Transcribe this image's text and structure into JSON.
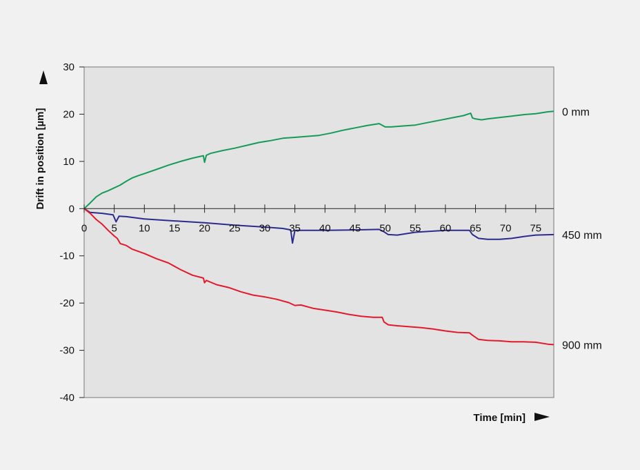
{
  "chart_data": {
    "type": "line",
    "xlabel": "Time [min]",
    "ylabel": "Drift in position [µm]",
    "xlim": [
      0,
      78
    ],
    "ylim": [
      -40,
      30
    ],
    "x_ticks": [
      0,
      5,
      10,
      15,
      20,
      25,
      30,
      35,
      40,
      45,
      50,
      55,
      60,
      65,
      70,
      75
    ],
    "y_ticks": [
      30,
      20,
      10,
      0,
      -10,
      -20,
      -30,
      -40
    ],
    "grid": false,
    "plot_background": "#e3e3e3",
    "page_background": "#f1f1f1",
    "series": [
      {
        "name": "0 mm",
        "color": "#159a57",
        "x": [
          0,
          1,
          2,
          3,
          4,
          5,
          6,
          7,
          8,
          9,
          10,
          12,
          14,
          16,
          18,
          19.8,
          20,
          20.3,
          21,
          23,
          25,
          27,
          29,
          31,
          33,
          35,
          37,
          39,
          41,
          43,
          45,
          47,
          49,
          50,
          51,
          53,
          55,
          57,
          59,
          61,
          63,
          64.2,
          64.5,
          65,
          66,
          67,
          69,
          71,
          73,
          75,
          77,
          78
        ],
        "y": [
          0,
          1.2,
          2.5,
          3.3,
          3.8,
          4.4,
          5.0,
          5.8,
          6.5,
          7.0,
          7.4,
          8.3,
          9.2,
          10.0,
          10.7,
          11.2,
          9.8,
          11.3,
          11.7,
          12.3,
          12.8,
          13.4,
          14.0,
          14.4,
          14.9,
          15.1,
          15.3,
          15.5,
          16.0,
          16.6,
          17.1,
          17.6,
          18.0,
          17.3,
          17.3,
          17.5,
          17.7,
          18.2,
          18.7,
          19.2,
          19.7,
          20.2,
          19.2,
          19.0,
          18.8,
          19.0,
          19.3,
          19.6,
          19.9,
          20.1,
          20.5,
          20.6
        ]
      },
      {
        "name": "450 mm",
        "color": "#2a2b8f",
        "x": [
          0,
          1,
          3,
          4.8,
          5.3,
          5.8,
          7,
          10,
          15,
          20,
          25,
          30,
          33,
          34.3,
          34.6,
          35,
          37,
          40,
          45,
          49,
          49.8,
          50.5,
          52,
          55,
          60,
          64,
          64.5,
          65.5,
          67,
          69,
          71,
          73,
          75,
          78
        ],
        "y": [
          0,
          -0.8,
          -1.0,
          -1.3,
          -2.8,
          -1.6,
          -1.7,
          -2.2,
          -2.6,
          -3.0,
          -3.5,
          -3.9,
          -4.2,
          -4.5,
          -7.3,
          -4.6,
          -4.6,
          -4.6,
          -4.5,
          -4.4,
          -4.9,
          -5.5,
          -5.6,
          -5.0,
          -4.6,
          -4.6,
          -5.5,
          -6.3,
          -6.5,
          -6.5,
          -6.3,
          -5.9,
          -5.6,
          -5.5
        ]
      },
      {
        "name": "900 mm",
        "color": "#e3192b",
        "x": [
          0,
          1,
          2,
          3,
          4,
          5,
          5.5,
          6,
          7,
          8,
          10,
          12,
          14,
          16,
          18,
          19.8,
          20,
          20.3,
          22,
          24,
          26,
          28,
          30,
          32,
          34,
          35,
          36,
          38,
          40,
          42,
          44,
          46,
          48,
          49.5,
          49.8,
          50.5,
          52,
          54,
          56,
          58,
          60,
          62,
          64,
          64.5,
          65.5,
          67,
          69,
          71,
          73,
          75,
          77,
          78
        ],
        "y": [
          0,
          -1.0,
          -2.3,
          -3.3,
          -4.6,
          -5.8,
          -6.3,
          -7.4,
          -7.8,
          -8.6,
          -9.5,
          -10.6,
          -11.5,
          -12.9,
          -14.1,
          -14.7,
          -15.7,
          -15.2,
          -16.1,
          -16.7,
          -17.6,
          -18.3,
          -18.7,
          -19.2,
          -19.9,
          -20.5,
          -20.4,
          -21.1,
          -21.5,
          -21.9,
          -22.4,
          -22.8,
          -23.0,
          -23.0,
          -24.0,
          -24.6,
          -24.8,
          -25.0,
          -25.2,
          -25.5,
          -25.9,
          -26.2,
          -26.3,
          -26.8,
          -27.7,
          -27.9,
          -28.0,
          -28.2,
          -28.2,
          -28.3,
          -28.7,
          -28.8
        ]
      }
    ]
  }
}
